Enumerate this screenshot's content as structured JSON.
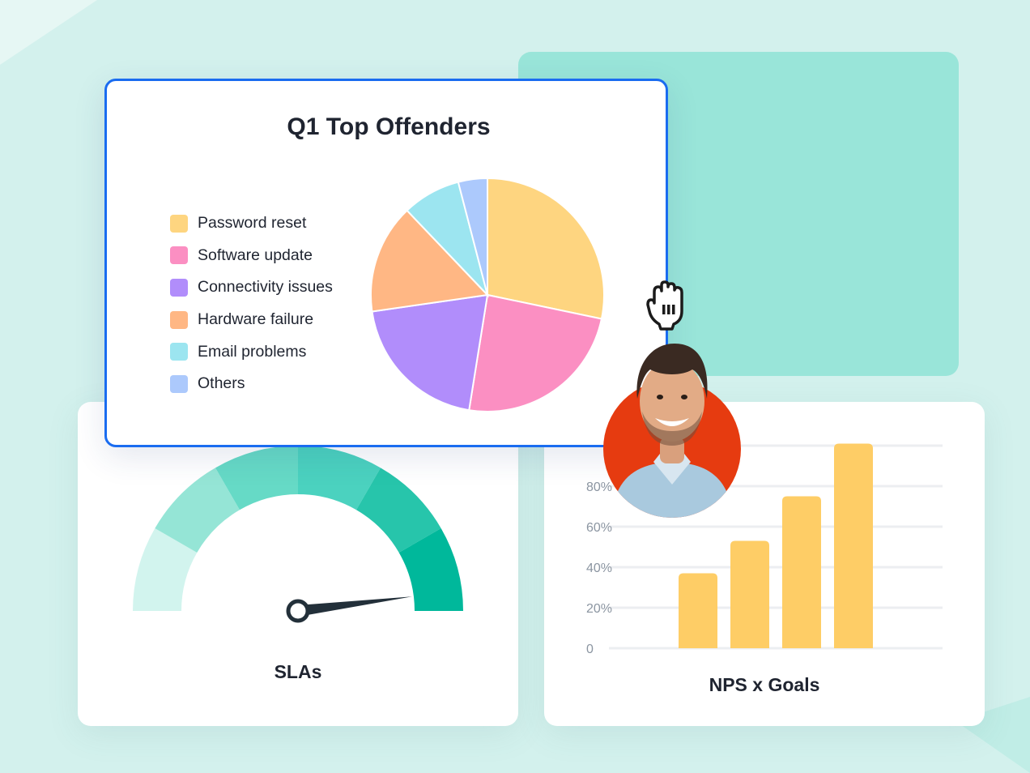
{
  "pie_card": {
    "chart_data": {
      "type": "pie",
      "title": "Q1 Top Offenders",
      "categories": [
        "Password reset",
        "Software update",
        "Connectivity issues",
        "Hardware failure",
        "Email problems",
        "Others"
      ],
      "values": [
        28,
        24,
        20,
        15,
        8,
        4
      ],
      "colors": [
        "#fed580",
        "#fb8fc2",
        "#b18dfb",
        "#ffb784",
        "#9ce5f0",
        "#acc9fc"
      ],
      "legend_position": "left"
    }
  },
  "sla_card": {
    "title": "SLAs",
    "gauge": {
      "value": 0.96,
      "segment_colors": [
        "#d2f4ee",
        "#95e5d6",
        "#66dac6",
        "#4bd2bf",
        "#27c5ab",
        "#00b89b"
      ]
    }
  },
  "nps_card": {
    "chart_data": {
      "type": "bar",
      "title": "NPS x Goals",
      "y_ticks": [
        "0",
        "20%",
        "40%",
        "60%",
        "80%"
      ],
      "ylim": [
        0,
        100
      ],
      "values": [
        37,
        53,
        75,
        101
      ],
      "bar_color": "#fecd66",
      "grid": true
    }
  },
  "icons": {
    "cursor": "grab-hand-cursor-icon",
    "avatar": "user-avatar"
  }
}
